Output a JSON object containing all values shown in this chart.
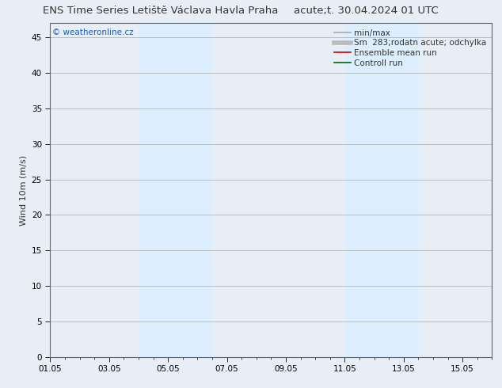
{
  "title_left": "ENS Time Series Letiště Václava Havla Praha",
  "title_right": "acute;t. 30.04.2024 01 UTC",
  "ylabel": "Wind 10m (m/s)",
  "watermark": "© weatheronline.cz",
  "watermark_color": "#1a5fb4",
  "ylim": [
    0,
    47
  ],
  "yticks": [
    0,
    5,
    10,
    15,
    20,
    25,
    30,
    35,
    40,
    45
  ],
  "xlim": [
    0,
    15
  ],
  "xtick_labels": [
    "01.05",
    "03.05",
    "05.05",
    "07.05",
    "09.05",
    "11.05",
    "13.05",
    "15.05"
  ],
  "xtick_positions": [
    0,
    2,
    4,
    6,
    8,
    10,
    12,
    14
  ],
  "shaded_bands": [
    {
      "start": 3,
      "end": 5.5
    },
    {
      "start": 10,
      "end": 12.5
    }
  ],
  "shade_color": "#ddeeff",
  "legend_entries": [
    {
      "label": "min/max",
      "color": "#aaaaaa",
      "linewidth": 1.2
    },
    {
      "label": "Sm  283;rodatn acute; odchylka",
      "color": "#bbbbbb",
      "linewidth": 4
    },
    {
      "label": "Ensemble mean run",
      "color": "#cc0000",
      "linewidth": 1.2
    },
    {
      "label": "Controll run",
      "color": "#006600",
      "linewidth": 1.2
    }
  ],
  "bg_color": "#e8eef5",
  "plot_bg_color": "#e8eef5",
  "title_color": "#333333",
  "title_fontsize": 9.5,
  "tick_fontsize": 7.5,
  "ylabel_fontsize": 8,
  "legend_fontsize": 7.5,
  "watermark_fontsize": 7.5
}
